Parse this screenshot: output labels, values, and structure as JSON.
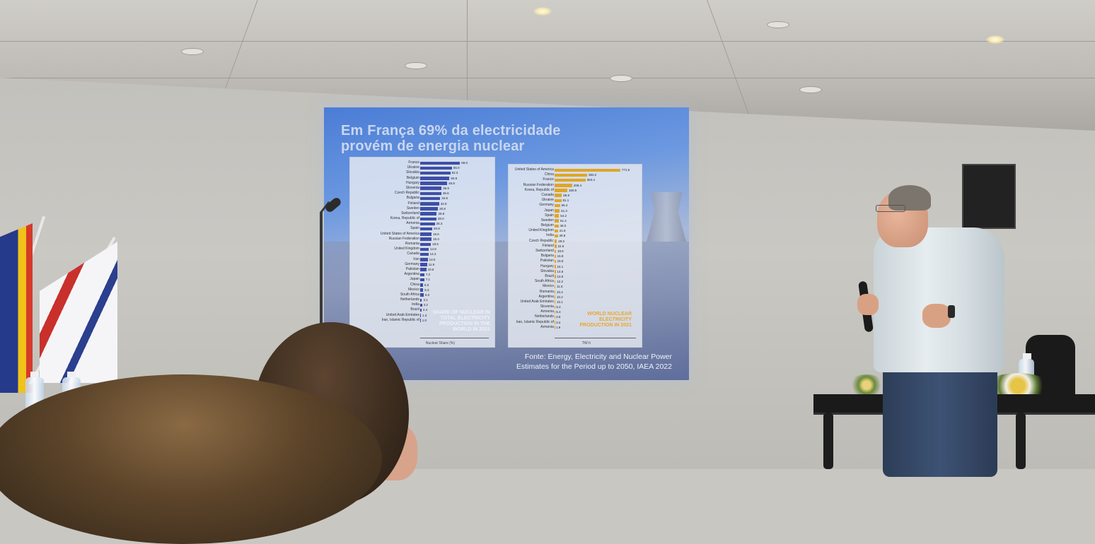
{
  "slide": {
    "title_line1": "Em França 69% da electricidade",
    "title_line2": "provém de energia nuclear",
    "source_line1": "Fonte: Energy, Electricity and Nuclear Power",
    "source_line2": "Estimates for the Period up to 2050, IAEA 2022"
  },
  "chart_data": [
    {
      "type": "bar",
      "orientation": "horizontal",
      "title": "SHARE OF NUCLEAR IN TOTAL ELECTRICITY PRODUCTION IN THE WORLD IN 2021",
      "xlabel": "Nuclear Share (%)",
      "xlim": [
        0,
        100
      ],
      "bar_color": "#3f4fa6",
      "categories": [
        "France",
        "Ukraine",
        "Slovakia",
        "Belgium",
        "Hungary",
        "Slovenia",
        "Czech Republic",
        "Bulgaria",
        "Finland",
        "Sweden",
        "Switzerland",
        "Korea, Republic of",
        "Armenia",
        "Spain",
        "United States of America",
        "Russian Federation",
        "Romania",
        "United Kingdom",
        "Canada",
        "Iran",
        "Germany",
        "Pakistan",
        "Argentina",
        "Japan",
        "China",
        "Mexico",
        "South Africa",
        "Netherlands",
        "India",
        "Brazil",
        "United Arab Emirates",
        "Iran, Islamic Republic of"
      ],
      "values": [
        69.0,
        55.0,
        52.3,
        50.8,
        46.8,
        36.9,
        36.6,
        34.6,
        32.8,
        30.8,
        28.8,
        28.0,
        25.3,
        20.8,
        19.6,
        20.0,
        18.5,
        14.8,
        14.3,
        13.0,
        11.9,
        10.6,
        7.2,
        7.1,
        5.0,
        5.3,
        6.0,
        3.1,
        3.2,
        2.4,
        1.3,
        1.0
      ]
    },
    {
      "type": "bar",
      "orientation": "horizontal",
      "title": "WORLD NUCLEAR ELECTRICITY PRODUCTION IN 2021",
      "xlabel": "TW·h",
      "bar_color": "#e0a526",
      "categories": [
        "United States of America",
        "China",
        "France",
        "Russian Federation",
        "Korea, Republic of",
        "Canada",
        "Ukraine",
        "Germany",
        "Japan",
        "Spain",
        "Sweden",
        "Belgium",
        "United Kingdom",
        "India",
        "Czech Republic",
        "Finland",
        "Switzerland",
        "Bulgaria",
        "Pakistan",
        "Hungary",
        "Slovakia",
        "Brazil",
        "South Africa",
        "Mexico",
        "Romania",
        "Argentina",
        "United Arab Emirates",
        "Slovenia",
        "Armenia",
        "Netherlands",
        "Iran, Islamic Republic of",
        "Armenia"
      ],
      "values": [
        771.6,
        383.2,
        363.4,
        208.4,
        150.5,
        86.8,
        81.1,
        65.4,
        61.3,
        54.2,
        51.4,
        48.0,
        41.8,
        39.8,
        29.0,
        22.6,
        18.6,
        15.8,
        15.8,
        15.1,
        14.6,
        13.9,
        12.2,
        11.6,
        10.4,
        10.2,
        10.1,
        5.4,
        5.4,
        3.6,
        3.2,
        1.9
      ]
    }
  ]
}
